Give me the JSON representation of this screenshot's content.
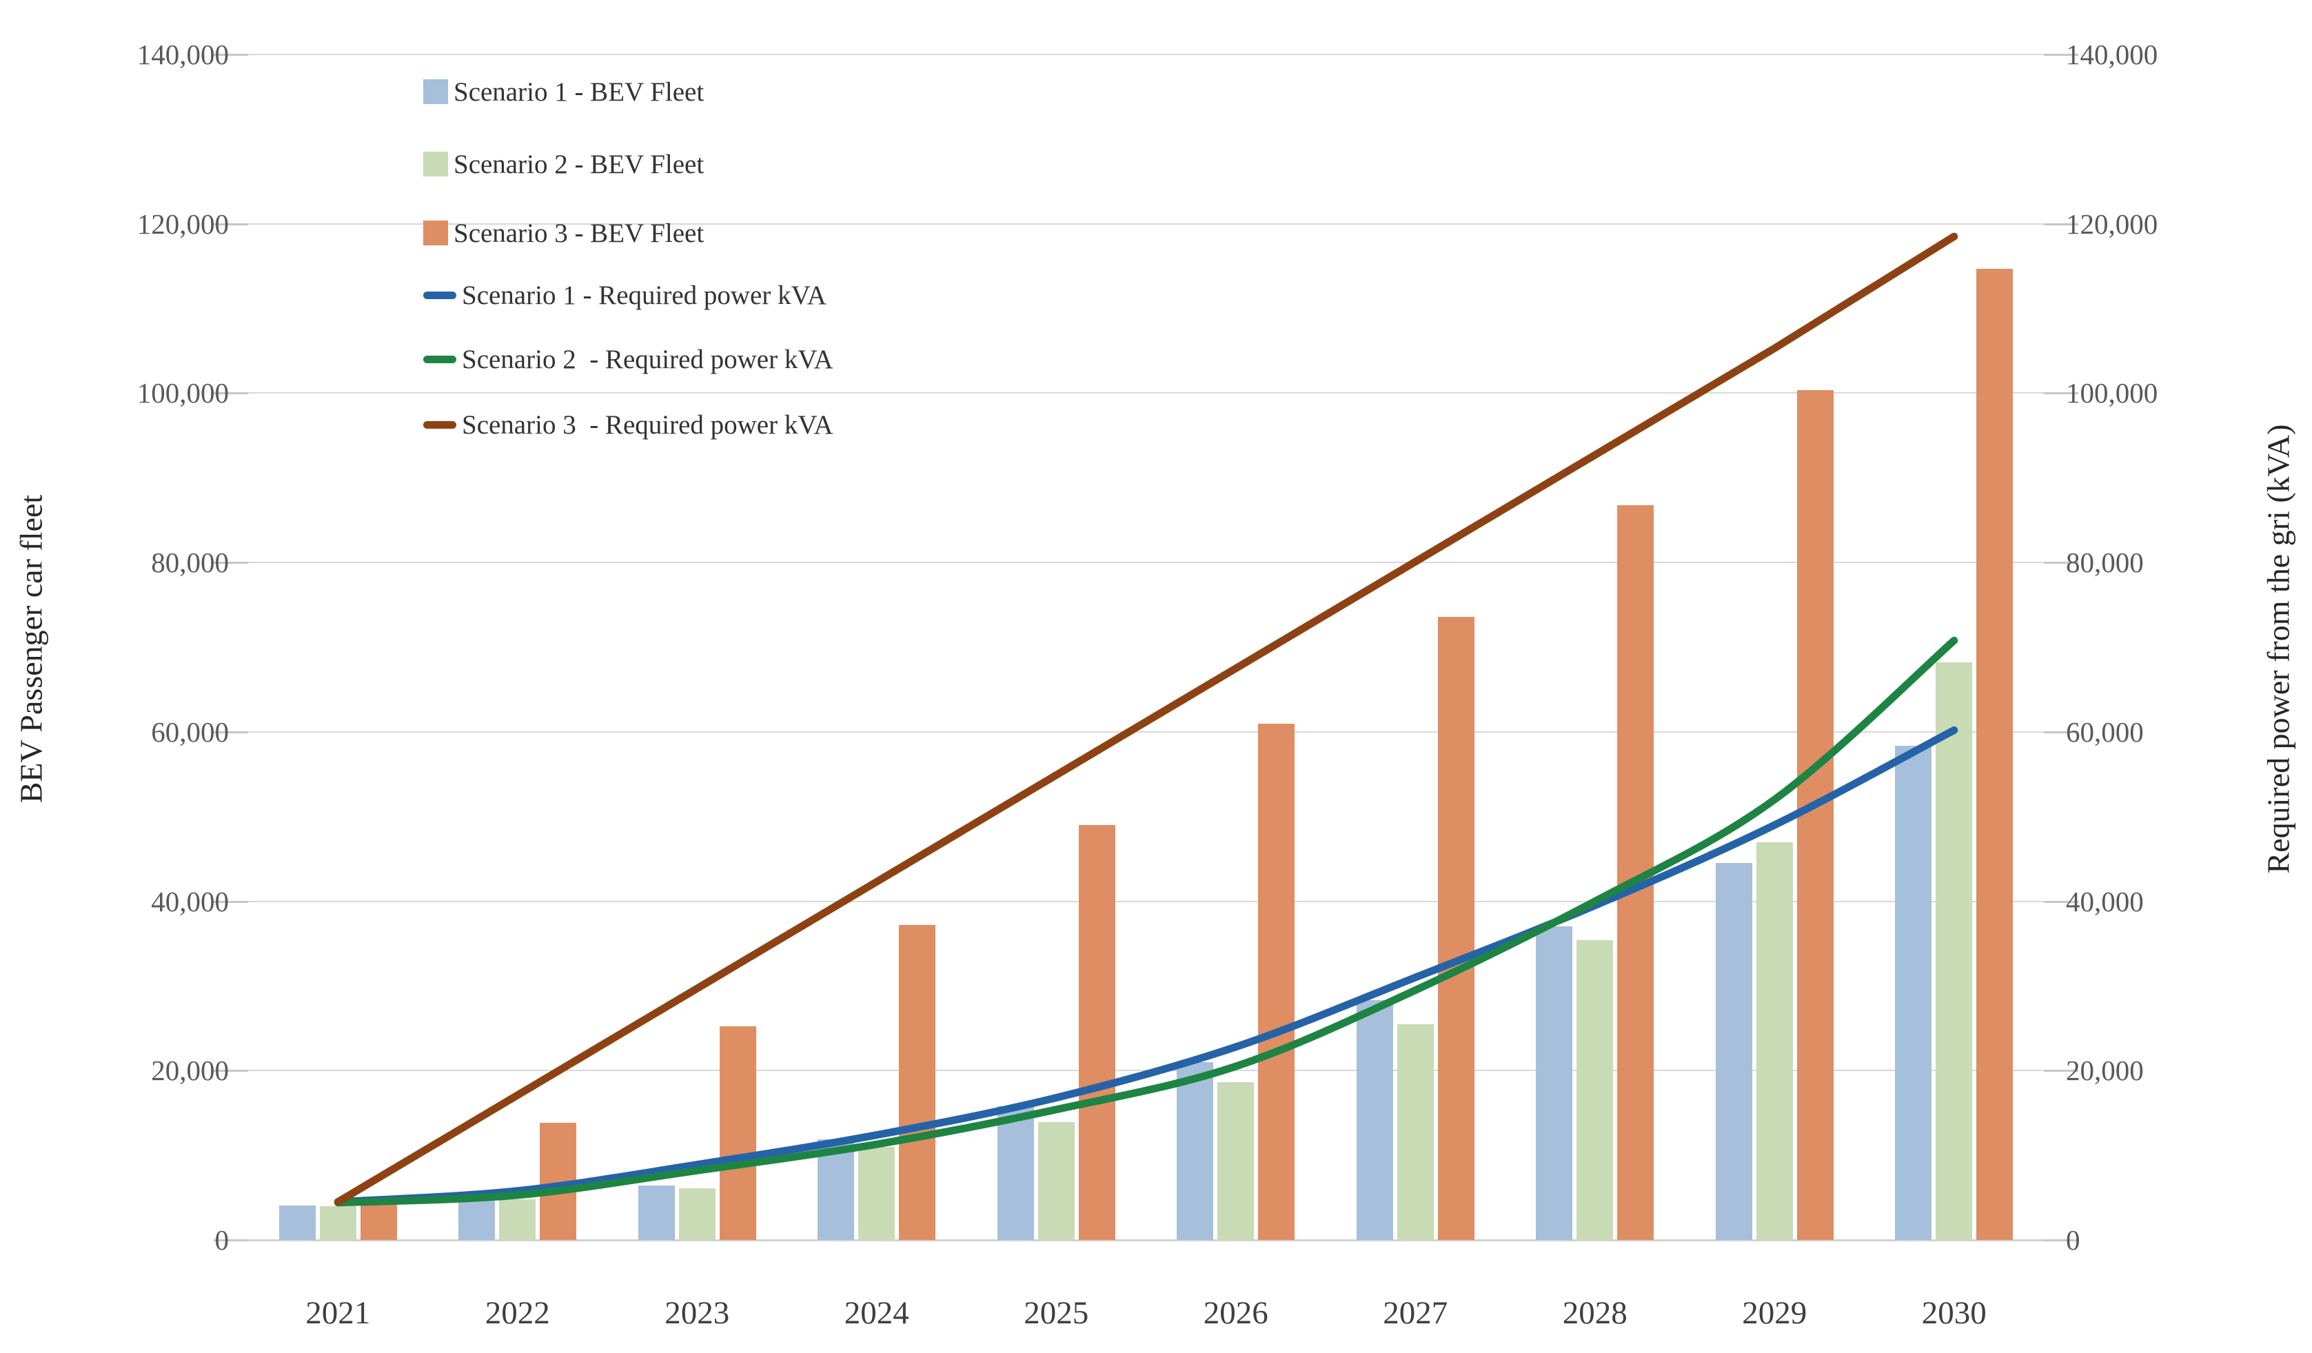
{
  "chart_data": {
    "type": "combo-bar-line",
    "title": "",
    "categories": [
      "2021",
      "2022",
      "2023",
      "2024",
      "2025",
      "2026",
      "2027",
      "2028",
      "2029",
      "2030"
    ],
    "bar_series": [
      {
        "name": "Scenario 1 - BEV Fleet",
        "color": "#a6c0dc",
        "values": [
          4100,
          5000,
          6400,
          11900,
          15800,
          21000,
          28300,
          37000,
          44500,
          58400
        ]
      },
      {
        "name": "Scenario 2 - BEV Fleet",
        "color": "#c9dbb4",
        "values": [
          4000,
          4800,
          6100,
          11000,
          13900,
          18600,
          25500,
          35400,
          47000,
          68200
        ]
      },
      {
        "name": "Scenario 3 - BEV Fleet",
        "color": "#de8e62",
        "values": [
          4200,
          13800,
          25200,
          37200,
          49000,
          61000,
          73600,
          86800,
          100400,
          114700
        ]
      }
    ],
    "line_series": [
      {
        "name": "Scenario 1 - Required power kVA",
        "color": "#2563a8",
        "smooth": true,
        "values": [
          4500,
          5800,
          8900,
          12400,
          16800,
          22800,
          31000,
          39500,
          49000,
          60200
        ]
      },
      {
        "name": "Scenario 2  - Required power kVA",
        "color": "#1e8444",
        "smooth": true,
        "values": [
          4400,
          5300,
          8200,
          11300,
          15400,
          20500,
          29500,
          40000,
          52000,
          70800
        ]
      },
      {
        "name": "Scenario 3  - Required power kVA",
        "color": "#8e4213",
        "smooth": false,
        "values": [
          4500,
          17100,
          29700,
          42300,
          54900,
          67500,
          80100,
          92700,
          105300,
          118500
        ]
      }
    ],
    "left_axis": {
      "title": "BEV Passenger car fleet",
      "min": 0,
      "max": 140000,
      "step": 20000,
      "tick_labels": [
        "0",
        "20,000",
        "40,000",
        "60,000",
        "80,000",
        "100,000",
        "120,000",
        "140,000"
      ]
    },
    "right_axis": {
      "title": "Required power from the gri (kVA)",
      "min": 0,
      "max": 140000,
      "step": 20000,
      "tick_labels": [
        "0",
        "20,000",
        "40,000",
        "60,000",
        "80,000",
        "100,000",
        "120,000",
        "140,000"
      ]
    },
    "grid": true,
    "legend_position": "top-left",
    "legend": [
      {
        "label": "Scenario 1 - BEV Fleet",
        "marker": "square",
        "color": "#a6c0dc"
      },
      {
        "label": "Scenario 2 - BEV Fleet",
        "marker": "square",
        "color": "#c9dbb4"
      },
      {
        "label": "Scenario 3 - BEV Fleet",
        "marker": "square",
        "color": "#de8e62"
      },
      {
        "label": "Scenario 1 - Required power kVA",
        "marker": "line",
        "color": "#2563a8"
      },
      {
        "label": "Scenario 2  - Required power kVA",
        "marker": "line",
        "color": "#1e8444"
      },
      {
        "label": "Scenario 3  - Required power kVA",
        "marker": "line",
        "color": "#8e4213"
      }
    ]
  },
  "colors": {
    "gridline": "#d9d9d9",
    "axis_line": "#d3d3d3",
    "tick_dash": "#c6c6c6",
    "tick_text": "#595959",
    "year_text": "#3f3f3f",
    "axis_title_text": "#262626",
    "background": "#ffffff"
  }
}
